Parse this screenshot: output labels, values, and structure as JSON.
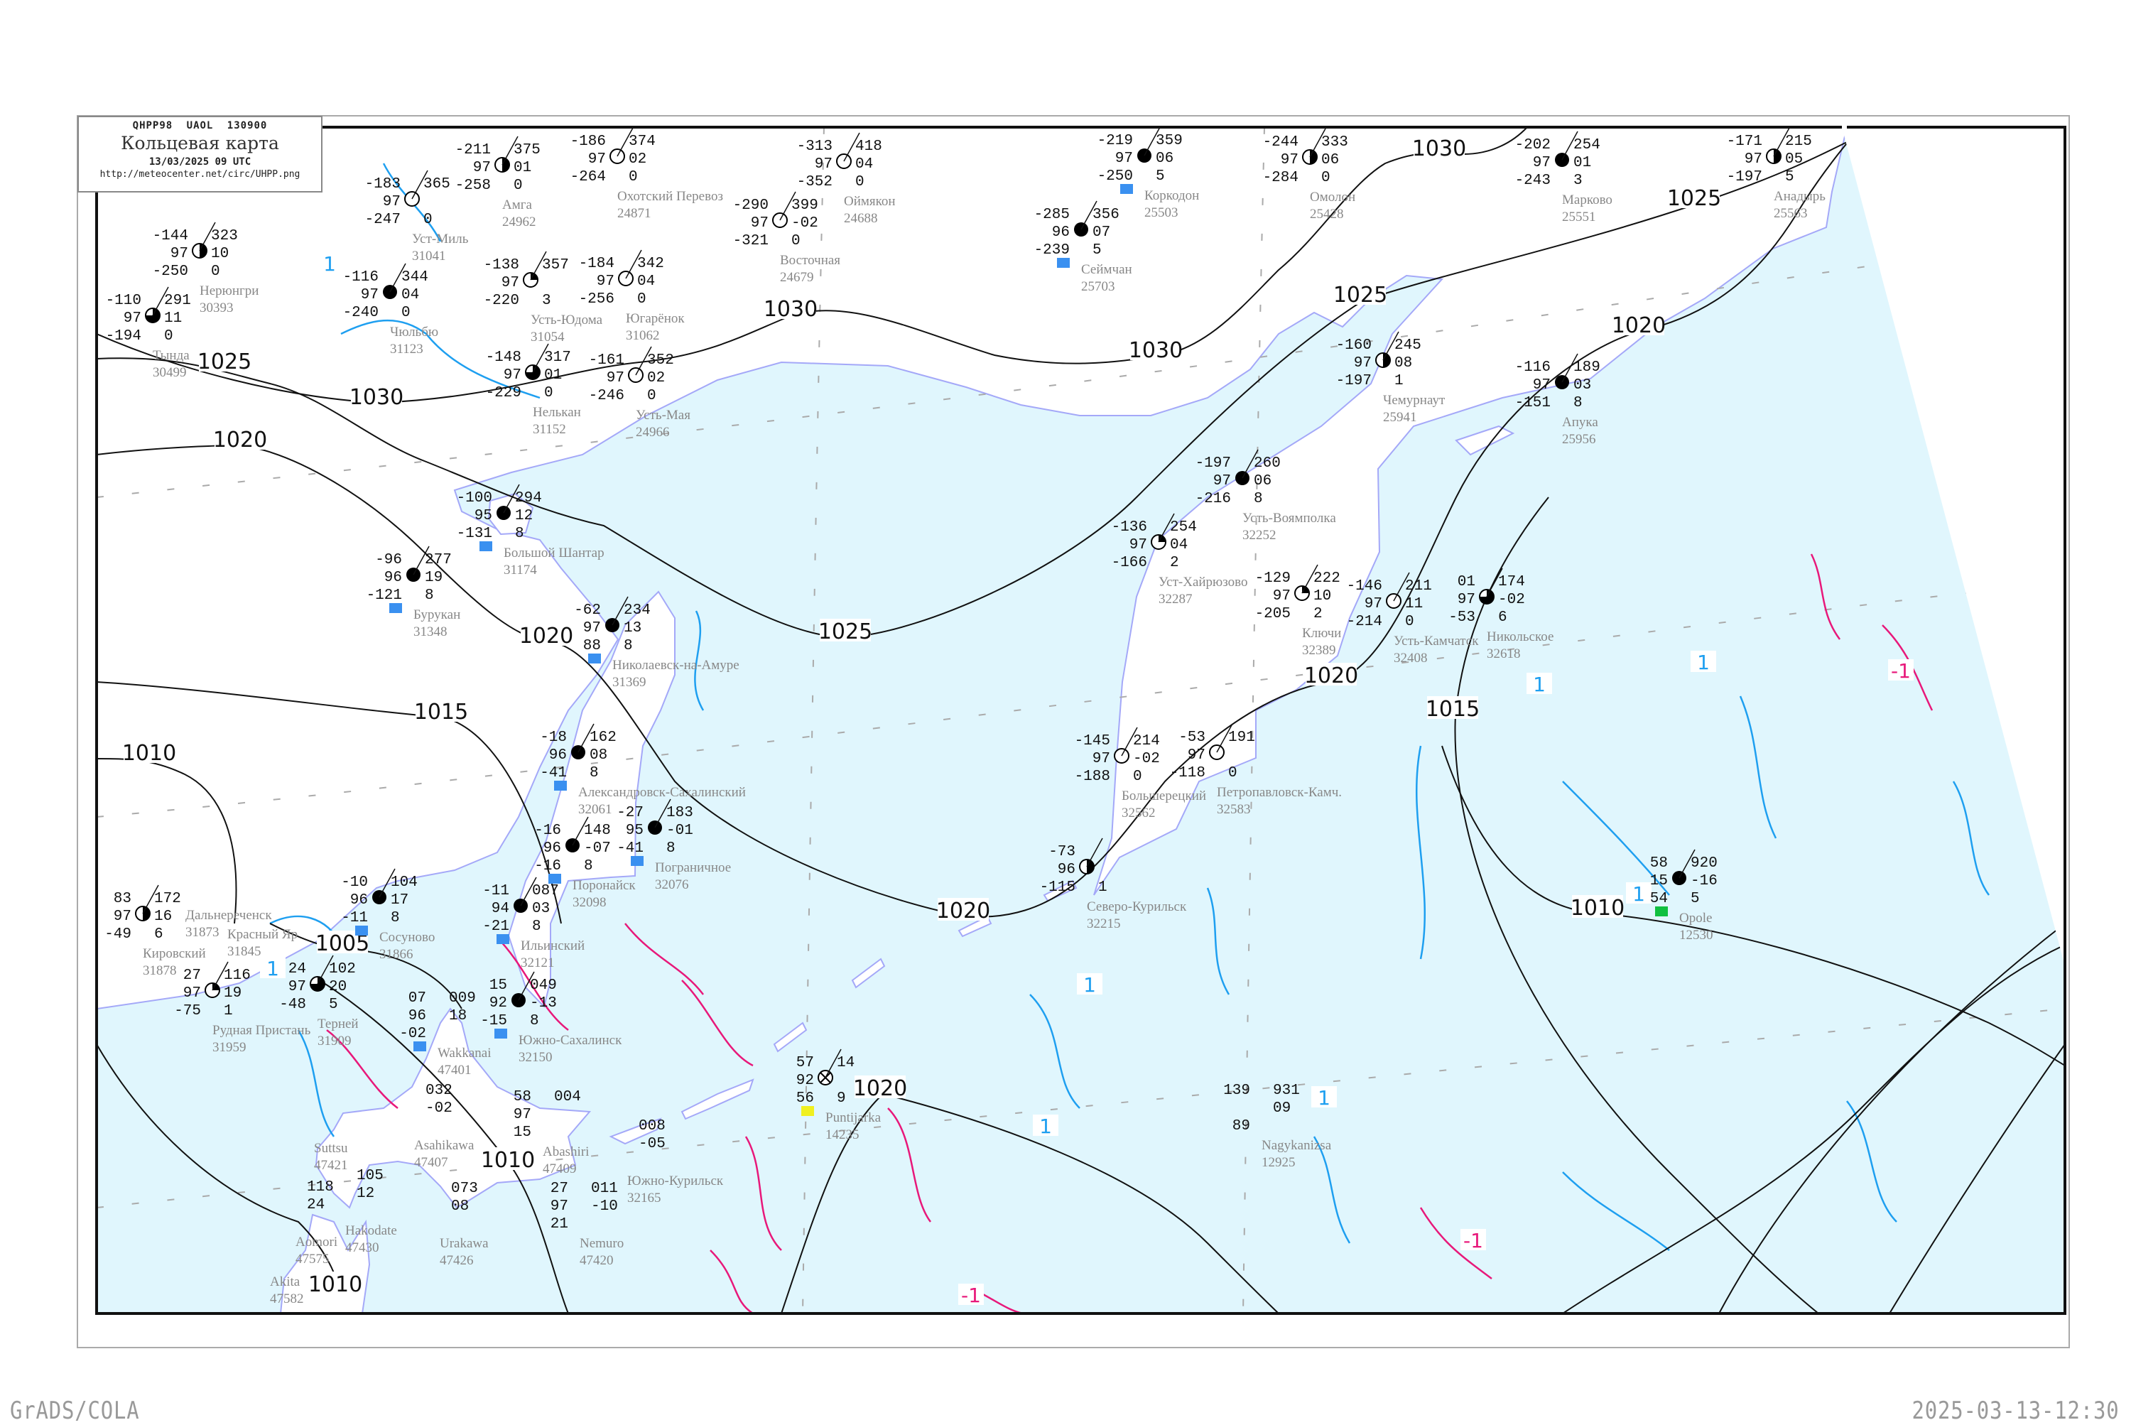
{
  "header": {
    "code_line": "QHPP98   UAOL   130900",
    "title": "Кольцевая карта",
    "date": "13/03/2025 09 UTC",
    "url": "http://meteocenter.net/circ/UHPP.png"
  },
  "footer": {
    "left": "GrADS/COLA",
    "right": "2025-03-13-12:30"
  },
  "colors": {
    "sea": "#e0f6fd",
    "coast": "#a4a8f8",
    "isobar": "#111111",
    "temp_contour_positive": "#1e9ff0",
    "temp_contour_negative": "#e8187a",
    "precip_marker": "#3a90f0",
    "station_name": "#888888"
  },
  "isobar_labels": [
    "1030",
    "1025",
    "1025",
    "1030",
    "1020",
    "1025",
    "1030",
    "1020",
    "1030",
    "1025",
    "1020",
    "1015",
    "1010",
    "1005",
    "1020",
    "1015",
    "1020",
    "1010",
    "1020",
    "1010",
    "1010"
  ],
  "temp_labels": [
    {
      "text": "-1",
      "kind": "negative"
    },
    {
      "text": "-1",
      "kind": "negative"
    },
    {
      "text": "-1",
      "kind": "negative"
    },
    {
      "text": "1",
      "kind": "positive"
    },
    {
      "text": "1",
      "kind": "positive"
    },
    {
      "text": "1",
      "kind": "positive"
    },
    {
      "text": "1",
      "kind": "positive"
    },
    {
      "text": "1",
      "kind": "positive"
    },
    {
      "text": "1",
      "kind": "positive"
    },
    {
      "text": "1",
      "kind": "positive"
    },
    {
      "text": "1",
      "kind": "positive"
    }
  ],
  "stations": [
    {
      "name": "Бурукан",
      "index": "31348",
      "cloud": "full",
      "tl": "-96",
      "ml": "96",
      "bl": "-121",
      "tr": "277",
      "mr": "19",
      "br": "8",
      "precip": true
    },
    {
      "name": "Большой Шантар",
      "index": "31174",
      "cloud": "full",
      "tl": "-100",
      "ml": "95",
      "bl": "-131",
      "tr": "294",
      "mr": "12",
      "br": "8",
      "precip": true
    },
    {
      "name": "Николаевск-на-Амуре",
      "index": "31369",
      "cloud": "full",
      "tl": "-62",
      "ml": "97",
      "bl": "88",
      "tr": "234",
      "mr": "13",
      "br": "8",
      "precip": true
    },
    {
      "name": "Усть-Воямполка",
      "index": "32252",
      "cloud": "full",
      "tl": "-197",
      "ml": "97",
      "bl": "-216",
      "tr": "260",
      "mr": "06",
      "br": "8"
    },
    {
      "name": "Уст-Хайрюзово",
      "index": "32287",
      "cloud": "quarter",
      "tl": "-136",
      "ml": "97",
      "bl": "-166",
      "tr": "254",
      "mr": "04",
      "br": "2"
    },
    {
      "name": "Ключи",
      "index": "32389",
      "cloud": "quarter",
      "tl": "-129",
      "ml": "97",
      "bl": "-205",
      "tr": "222",
      "mr": "10",
      "br": "2"
    },
    {
      "name": "Усть-Камчатск",
      "index": "32408",
      "cloud": "empty",
      "tl": "-146",
      "ml": "97",
      "bl": "-214",
      "tr": "211",
      "mr": "11",
      "br": "0"
    },
    {
      "name": "Никольское",
      "index": "32618",
      "cloud": "threequarter",
      "tl": "01",
      "ml": "97",
      "bl": "-53",
      "tr": "174",
      "mr": "-02",
      "br": "6"
    },
    {
      "name": "Большерецкий",
      "index": "32562",
      "cloud": "empty",
      "tl": "-145",
      "ml": "97",
      "bl": "-188",
      "tr": "214",
      "mr": "-02",
      "br": "0"
    },
    {
      "name": "Петропавловск-Камч.",
      "index": "32583",
      "cloud": "empty",
      "tl": "-53",
      "ml": "97",
      "bl": "-118",
      "tr": "191",
      "mr": "",
      "br": "0"
    },
    {
      "name": "Северо-Курильск",
      "index": "32215",
      "cloud": "half",
      "tl": "-73",
      "ml": "96",
      "bl": "-115",
      "tr": "",
      "mr": "",
      "br": "1"
    },
    {
      "name": "Оймякон",
      "index": "24688",
      "cloud": "empty",
      "tl": "-313",
      "ml": "97",
      "bl": "-352",
      "tr": "418",
      "mr": "04",
      "br": "0"
    },
    {
      "name": "Охотский Перевоз",
      "index": "24871",
      "cloud": "empty",
      "tl": "-186",
      "ml": "97",
      "bl": "-264",
      "tr": "374",
      "mr": "02",
      "br": "0"
    },
    {
      "name": "Восточная",
      "index": "24679",
      "cloud": "empty",
      "tl": "-290",
      "ml": "97",
      "bl": "-321",
      "tr": "399",
      "mr": "-02",
      "br": "0"
    },
    {
      "name": "Коркодон",
      "index": "25503",
      "cloud": "full",
      "tl": "-219",
      "ml": "97",
      "bl": "-250",
      "tr": "359",
      "mr": "06",
      "br": "5",
      "precip": true
    },
    {
      "name": "Сеймчан",
      "index": "25703",
      "cloud": "full",
      "tl": "-285",
      "ml": "96",
      "bl": "-239",
      "tr": "356",
      "mr": "07",
      "br": "5",
      "precip": true
    },
    {
      "name": "Югарёнок",
      "index": "31062",
      "cloud": "empty",
      "tl": "-184",
      "ml": "97",
      "bl": "-256",
      "tr": "342",
      "mr": "04",
      "br": "0"
    },
    {
      "name": "Усть-Юдома",
      "index": "31054",
      "cloud": "quarter",
      "tl": "-138",
      "ml": "97",
      "bl": "-220",
      "tr": "357",
      "mr": "",
      "br": "3"
    },
    {
      "name": "Чюльбю",
      "index": "31123",
      "cloud": "full",
      "tl": "-116",
      "ml": "97",
      "bl": "-240",
      "tr": "344",
      "mr": "04",
      "br": "0"
    },
    {
      "name": "Нелькан",
      "index": "31152",
      "cloud": "threequarter",
      "tl": "-148",
      "ml": "97",
      "bl": "-229",
      "tr": "317",
      "mr": "01",
      "br": "0"
    },
    {
      "name": "Тында",
      "index": "30499",
      "cloud": "threequarter",
      "tl": "-110",
      "ml": "97",
      "bl": "-194",
      "tr": "291",
      "mr": "11",
      "br": "0"
    },
    {
      "name": "Нерюнгри",
      "index": "30393",
      "cloud": "half",
      "tl": "-144",
      "ml": "97",
      "bl": "-250",
      "tr": "323",
      "mr": "10",
      "br": "0"
    },
    {
      "name": "Амга",
      "index": "24962",
      "cloud": "half",
      "tl": "-211",
      "ml": "97",
      "bl": "-258",
      "tr": "375",
      "mr": "01",
      "br": "0"
    },
    {
      "name": "Уст-Миль",
      "index": "31041",
      "cloud": "empty",
      "tl": "-183",
      "ml": "97",
      "bl": "-247",
      "tr": "365",
      "mr": "",
      "br": "0"
    },
    {
      "name": "Усть-Мая",
      "index": "24966",
      "cloud": "empty",
      "tl": "-161",
      "ml": "97",
      "bl": "-246",
      "tr": "352",
      "mr": "02",
      "br": "0"
    },
    {
      "name": "Омолон",
      "index": "25428",
      "cloud": "half",
      "tl": "-244",
      "ml": "97",
      "bl": "-284",
      "tr": "333",
      "mr": "06",
      "br": "0"
    },
    {
      "name": "Марково",
      "index": "25551",
      "cloud": "full",
      "tl": "-202",
      "ml": "97",
      "bl": "-243",
      "tr": "254",
      "mr": "01",
      "br": "3"
    },
    {
      "name": "Анадырь",
      "index": "25563",
      "cloud": "half",
      "tl": "-171",
      "ml": "97",
      "bl": "-197",
      "tr": "215",
      "mr": "05",
      "br": "5"
    },
    {
      "name": "Чемурнаут",
      "index": "25941",
      "cloud": "half",
      "tl": "-160",
      "ml": "97",
      "bl": "-197",
      "tr": "245",
      "mr": "08",
      "br": "1"
    },
    {
      "name": "Апука",
      "index": "25956",
      "cloud": "full",
      "tl": "-116",
      "ml": "97",
      "bl": "-151",
      "tr": "189",
      "mr": "03",
      "br": "8"
    },
    {
      "name": "Александровск-Сахалинский",
      "index": "32061",
      "cloud": "full",
      "tl": "-18",
      "ml": "96",
      "bl": "-41",
      "tr": "162",
      "mr": "08",
      "br": "8",
      "precip": true
    },
    {
      "name": "Пограничное",
      "index": "32076",
      "cloud": "full",
      "tl": "-27",
      "ml": "95",
      "bl": "-41",
      "tr": "183",
      "mr": "-01",
      "br": "8",
      "precip": true
    },
    {
      "name": "Поронайск",
      "index": "32098",
      "cloud": "full",
      "tl": "-16",
      "ml": "96",
      "bl": "-16",
      "tr": "148",
      "mr": "-07",
      "br": "8",
      "precip": true
    },
    {
      "name": "Ильинский",
      "index": "32121",
      "cloud": "full",
      "tl": "-11",
      "ml": "94",
      "bl": "-21",
      "tr": "087",
      "mr": "03",
      "br": "8",
      "precip": true
    },
    {
      "name": "Южно-Сахалинск",
      "index": "32150",
      "cloud": "full",
      "tl": "15",
      "ml": "92",
      "bl": "-15",
      "tr": "049",
      "mr": "-13",
      "br": "8",
      "precip": true
    },
    {
      "name": "Кировский",
      "index": "31878",
      "cloud": "half",
      "tl": "83",
      "ml": "97",
      "bl": "-49",
      "tr": "172",
      "mr": "16",
      "br": "6"
    },
    {
      "name": "Рудная Пристань",
      "index": "31959",
      "cloud": "quarter",
      "tl": "27",
      "ml": "97",
      "bl": "-75",
      "tr": "116",
      "mr": "19",
      "br": "1"
    },
    {
      "name": "Терней",
      "index": "31909",
      "cloud": "threequarter",
      "tl": "24",
      "ml": "97",
      "bl": "-48",
      "tr": "102",
      "mr": "20",
      "br": "5"
    },
    {
      "name": "Сосуново",
      "index": "31866",
      "cloud": "full",
      "tl": "-10",
      "ml": "96",
      "bl": "-11",
      "tr": "104",
      "mr": "17",
      "br": "8",
      "precip": true
    },
    {
      "name": "Opole",
      "index": "12530",
      "cloud": "full",
      "tl": "58",
      "ml": "15",
      "bl": "54",
      "tr": "920",
      "mr": "-16",
      "br": "5",
      "green": true
    },
    {
      "name": "Puntijarka",
      "index": "14235",
      "cloud": "cross",
      "tl": "57",
      "ml": "92",
      "bl": "56",
      "tr": "14",
      "mr": "",
      "br": "9",
      "yellow": true
    },
    {
      "name": "Nagykanizsa",
      "index": "12925",
      "cloud": "none",
      "tl": "139",
      "ml": "",
      "bl": "89",
      "tr": "931",
      "mr": "09",
      "br": ""
    },
    {
      "name": "Wakkanai",
      "index": "47401",
      "cloud": "none",
      "tl": "07",
      "ml": "96",
      "bl": "-02",
      "tr": "009",
      "mr": "18",
      "br": "",
      "precip": true
    },
    {
      "name": "Asahikawa",
      "index": "47407",
      "cloud": "none",
      "tl": "",
      "ml": "",
      "bl": "",
      "tr": "032",
      "mr": "-02",
      "br": ""
    },
    {
      "name": "Abashiri",
      "index": "47409",
      "cloud": "none",
      "tl": "58",
      "ml": "97",
      "bl": "15",
      "tr": "004",
      "mr": "",
      "br": ""
    },
    {
      "name": "Nemuro",
      "index": "47420",
      "cloud": "none",
      "tl": "27",
      "ml": "97",
      "bl": "21",
      "tr": "011",
      "mr": "-10",
      "br": ""
    },
    {
      "name": "Urakawa",
      "index": "47426",
      "cloud": "none",
      "tl": "",
      "ml": "",
      "bl": "",
      "tr": "073",
      "mr": "08",
      "br": ""
    },
    {
      "name": "Hakodate",
      "index": "47430",
      "cloud": "none",
      "tl": "",
      "ml": "",
      "bl": "",
      "tr": "105",
      "mr": "12",
      "br": ""
    },
    {
      "name": "Aomori",
      "index": "47575",
      "cloud": "none",
      "tl": "",
      "ml": "",
      "bl": "",
      "tr": "118",
      "mr": "24",
      "br": ""
    },
    {
      "name": "Akita",
      "index": "47582",
      "cloud": "none",
      "tl": "",
      "ml": "",
      "bl": "",
      "tr": "",
      "mr": "",
      "br": ""
    },
    {
      "name": "Suttsu",
      "index": "47421",
      "cloud": "none",
      "tl": "",
      "ml": "",
      "bl": "",
      "tr": "",
      "mr": "",
      "br": ""
    },
    {
      "name": "Южно-Курильск",
      "index": "32165",
      "cloud": "none",
      "tl": "",
      "ml": "",
      "bl": "",
      "tr": "008",
      "mr": "-05",
      "br": ""
    },
    {
      "name": "Дальнереченск",
      "index": "31873",
      "cloud": "none",
      "tl": "",
      "ml": "",
      "bl": "",
      "tr": "",
      "mr": "",
      "br": ""
    },
    {
      "name": "Красный Яр",
      "index": "31845",
      "cloud": "none",
      "tl": "",
      "ml": "",
      "bl": "",
      "tr": "",
      "mr": "",
      "br": ""
    }
  ]
}
